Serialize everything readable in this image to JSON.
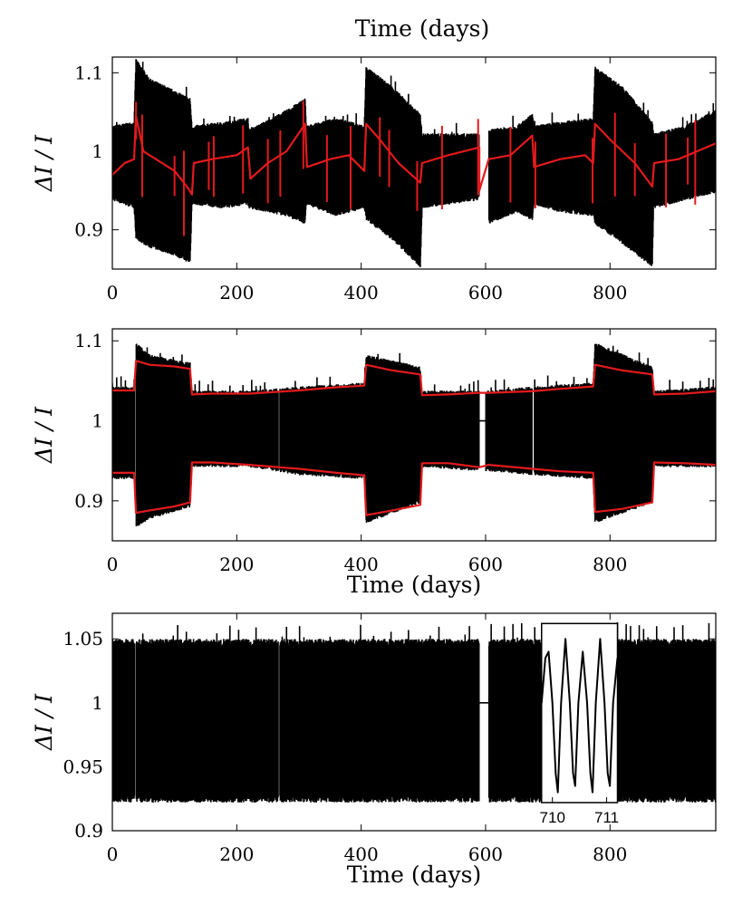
{
  "chart_data": [
    {
      "type": "line",
      "panel": "top",
      "title": "",
      "top_label": "Time (days)",
      "xlabel": "",
      "ylabel": "ΔI / I",
      "xlim": [
        0,
        970
      ],
      "ylim": [
        0.85,
        1.12
      ],
      "xticks": [
        0,
        200,
        400,
        600,
        800
      ],
      "xtick_labels": [
        "0",
        "200",
        "400",
        "600",
        "800"
      ],
      "yticks": [
        0.9,
        1.0,
        1.1
      ],
      "ytick_labels": [
        "0.9",
        "1",
        "1.1"
      ],
      "grid": false,
      "gaps": [
        [
          590,
          605
        ]
      ],
      "series": [
        {
          "color": "#000000",
          "style": "dense-oscillation-band",
          "upper": [
            [
              0,
              1.03
            ],
            [
              35,
              1.035
            ],
            [
              38,
              1.115
            ],
            [
              60,
              1.09
            ],
            [
              100,
              1.075
            ],
            [
              125,
              1.065
            ],
            [
              128,
              1.03
            ],
            [
              180,
              1.035
            ],
            [
              218,
              1.04
            ],
            [
              220,
              1.025
            ],
            [
              280,
              1.05
            ],
            [
              310,
              1.065
            ],
            [
              312,
              1.03
            ],
            [
              360,
              1.04
            ],
            [
              405,
              1.03
            ],
            [
              408,
              1.105
            ],
            [
              450,
              1.08
            ],
            [
              495,
              1.045
            ],
            [
              498,
              1.02
            ],
            [
              540,
              1.02
            ],
            [
              590,
              1.02
            ],
            [
              605,
              1.025
            ],
            [
              650,
              1.03
            ],
            [
              675,
              1.045
            ],
            [
              678,
              1.03
            ],
            [
              720,
              1.035
            ],
            [
              773,
              1.04
            ],
            [
              776,
              1.105
            ],
            [
              820,
              1.08
            ],
            [
              868,
              1.035
            ],
            [
              870,
              1.02
            ],
            [
              920,
              1.03
            ],
            [
              970,
              1.05
            ]
          ],
          "lower": [
            [
              0,
              0.94
            ],
            [
              35,
              0.93
            ],
            [
              38,
              0.89
            ],
            [
              60,
              0.88
            ],
            [
              100,
              0.87
            ],
            [
              125,
              0.86
            ],
            [
              128,
              0.935
            ],
            [
              180,
              0.93
            ],
            [
              218,
              0.935
            ],
            [
              220,
              0.93
            ],
            [
              280,
              0.92
            ],
            [
              310,
              0.91
            ],
            [
              312,
              0.935
            ],
            [
              360,
              0.92
            ],
            [
              405,
              0.93
            ],
            [
              408,
              0.915
            ],
            [
              450,
              0.89
            ],
            [
              495,
              0.855
            ],
            [
              498,
              0.93
            ],
            [
              540,
              0.935
            ],
            [
              590,
              0.94
            ],
            [
              605,
              0.91
            ],
            [
              650,
              0.925
            ],
            [
              675,
              0.915
            ],
            [
              678,
              0.935
            ],
            [
              720,
              0.925
            ],
            [
              773,
              0.92
            ],
            [
              776,
              0.91
            ],
            [
              820,
              0.885
            ],
            [
              868,
              0.855
            ],
            [
              870,
              0.93
            ],
            [
              920,
              0.94
            ],
            [
              970,
              0.95
            ]
          ]
        },
        {
          "color": "#e31a1c",
          "style": "line",
          "points": [
            [
              0,
              0.97
            ],
            [
              20,
              0.985
            ],
            [
              35,
              0.99
            ],
            [
              38,
              1.045
            ],
            [
              50,
              1.0
            ],
            [
              70,
              0.99
            ],
            [
              100,
              0.975
            ],
            [
              120,
              0.955
            ],
            [
              128,
              0.945
            ],
            [
              131,
              0.985
            ],
            [
              160,
              0.99
            ],
            [
              200,
              0.995
            ],
            [
              218,
              1.005
            ],
            [
              222,
              0.965
            ],
            [
              250,
              0.985
            ],
            [
              280,
              1.0
            ],
            [
              310,
              1.035
            ],
            [
              313,
              0.98
            ],
            [
              350,
              0.99
            ],
            [
              380,
              0.995
            ],
            [
              405,
              0.975
            ],
            [
              408,
              1.035
            ],
            [
              430,
              1.015
            ],
            [
              460,
              0.985
            ],
            [
              495,
              0.96
            ],
            [
              498,
              0.985
            ],
            [
              540,
              0.995
            ],
            [
              590,
              1.005
            ],
            [
              590,
              0.95
            ],
            [
              605,
              0.99
            ],
            [
              640,
              0.995
            ],
            [
              675,
              1.02
            ],
            [
              678,
              0.98
            ],
            [
              720,
              0.99
            ],
            [
              760,
              0.995
            ],
            [
              773,
              0.985
            ],
            [
              776,
              1.035
            ],
            [
              800,
              1.015
            ],
            [
              840,
              0.985
            ],
            [
              868,
              0.955
            ],
            [
              871,
              0.985
            ],
            [
              910,
              0.99
            ],
            [
              940,
              1.0
            ],
            [
              970,
              1.01
            ]
          ]
        }
      ]
    },
    {
      "type": "line",
      "panel": "middle",
      "title": "",
      "xlabel": "Time (days)",
      "ylabel": "ΔI / I",
      "xlim": [
        0,
        970
      ],
      "ylim": [
        0.85,
        1.115
      ],
      "xticks": [
        0,
        200,
        400,
        600,
        800
      ],
      "xtick_labels": [
        "0",
        "200",
        "400",
        "600",
        "800"
      ],
      "yticks": [
        0.9,
        1.0,
        1.1
      ],
      "ytick_labels": [
        "0.9",
        "1",
        "1.1"
      ],
      "grid": false,
      "gaps": [
        [
          36,
          38
        ],
        [
          267,
          269
        ],
        [
          590,
          600
        ],
        [
          675,
          678
        ]
      ],
      "series": [
        {
          "color": "#000000",
          "style": "dense-oscillation-band",
          "upper": [
            [
              0,
              1.04
            ],
            [
              35,
              1.04
            ],
            [
              38,
              1.095
            ],
            [
              60,
              1.08
            ],
            [
              125,
              1.07
            ],
            [
              128,
              1.035
            ],
            [
              220,
              1.035
            ],
            [
              300,
              1.04
            ],
            [
              405,
              1.045
            ],
            [
              408,
              1.08
            ],
            [
              495,
              1.065
            ],
            [
              498,
              1.035
            ],
            [
              590,
              1.035
            ],
            [
              605,
              1.035
            ],
            [
              675,
              1.04
            ],
            [
              773,
              1.045
            ],
            [
              776,
              1.095
            ],
            [
              868,
              1.065
            ],
            [
              871,
              1.035
            ],
            [
              970,
              1.04
            ]
          ],
          "lower": [
            [
              0,
              0.93
            ],
            [
              35,
              0.93
            ],
            [
              38,
              0.87
            ],
            [
              60,
              0.88
            ],
            [
              125,
              0.895
            ],
            [
              128,
              0.945
            ],
            [
              220,
              0.945
            ],
            [
              300,
              0.935
            ],
            [
              405,
              0.93
            ],
            [
              408,
              0.875
            ],
            [
              495,
              0.9
            ],
            [
              498,
              0.945
            ],
            [
              590,
              0.94
            ],
            [
              605,
              0.94
            ],
            [
              675,
              0.935
            ],
            [
              773,
              0.93
            ],
            [
              776,
              0.875
            ],
            [
              868,
              0.9
            ],
            [
              871,
              0.945
            ],
            [
              970,
              0.945
            ]
          ]
        },
        {
          "color": "#e31a1c",
          "style": "line",
          "points": [
            [
              0,
              1.038
            ],
            [
              35,
              1.038
            ],
            [
              38,
              1.075
            ],
            [
              60,
              1.07
            ],
            [
              100,
              1.068
            ],
            [
              125,
              1.065
            ],
            [
              128,
              1.033
            ],
            [
              160,
              1.034
            ],
            [
              220,
              1.034
            ],
            [
              300,
              1.038
            ],
            [
              360,
              1.042
            ],
            [
              405,
              1.044
            ],
            [
              408,
              1.07
            ],
            [
              450,
              1.063
            ],
            [
              495,
              1.058
            ],
            [
              498,
              1.032
            ],
            [
              540,
              1.033
            ],
            [
              590,
              1.035
            ],
            [
              605,
              1.035
            ],
            [
              675,
              1.037
            ],
            [
              720,
              1.04
            ],
            [
              773,
              1.043
            ],
            [
              776,
              1.07
            ],
            [
              820,
              1.063
            ],
            [
              868,
              1.058
            ],
            [
              871,
              1.033
            ],
            [
              920,
              1.034
            ],
            [
              970,
              1.037
            ]
          ]
        },
        {
          "color": "#e31a1c",
          "style": "line",
          "points": [
            [
              0,
              0.935
            ],
            [
              35,
              0.935
            ],
            [
              38,
              0.885
            ],
            [
              60,
              0.888
            ],
            [
              100,
              0.893
            ],
            [
              125,
              0.898
            ],
            [
              128,
              0.948
            ],
            [
              160,
              0.948
            ],
            [
              220,
              0.945
            ],
            [
              300,
              0.94
            ],
            [
              360,
              0.935
            ],
            [
              405,
              0.932
            ],
            [
              408,
              0.882
            ],
            [
              450,
              0.888
            ],
            [
              495,
              0.895
            ],
            [
              498,
              0.947
            ],
            [
              540,
              0.947
            ],
            [
              590,
              0.942
            ],
            [
              605,
              0.945
            ],
            [
              675,
              0.94
            ],
            [
              720,
              0.937
            ],
            [
              773,
              0.935
            ],
            [
              776,
              0.886
            ],
            [
              820,
              0.89
            ],
            [
              868,
              0.898
            ],
            [
              871,
              0.948
            ],
            [
              920,
              0.947
            ],
            [
              970,
              0.945
            ]
          ]
        }
      ]
    },
    {
      "type": "line",
      "panel": "bottom",
      "title": "",
      "xlabel": "Time (days)",
      "ylabel": "ΔI / I",
      "xlim": [
        0,
        970
      ],
      "ylim": [
        0.9,
        1.07
      ],
      "xticks": [
        0,
        200,
        400,
        600,
        800
      ],
      "xtick_labels": [
        "0",
        "200",
        "400",
        "600",
        "800"
      ],
      "yticks": [
        0.9,
        0.95,
        1.0,
        1.05
      ],
      "ytick_labels": [
        "0.9",
        "0.95",
        "1",
        "1.05"
      ],
      "grid": false,
      "gaps": [
        [
          36,
          38
        ],
        [
          267,
          269
        ],
        [
          590,
          605
        ]
      ],
      "series": [
        {
          "color": "#000000",
          "style": "dense-oscillation-band",
          "upper": [
            [
              0,
              1.047
            ],
            [
              970,
              1.047
            ]
          ],
          "lower": [
            [
              0,
              0.925
            ],
            [
              970,
              0.925
            ]
          ]
        }
      ],
      "inset": {
        "x_labels": [
          "710",
          "711"
        ],
        "x_range": [
          709.8,
          711.2
        ],
        "y_range": [
          0.922,
          1.062
        ],
        "curve": [
          [
            709.8,
            1.0
          ],
          [
            709.87,
            1.035
          ],
          [
            709.93,
            1.04
          ],
          [
            710.0,
            1.0
          ],
          [
            710.06,
            0.945
          ],
          [
            710.1,
            0.93
          ],
          [
            710.16,
            1.0
          ],
          [
            710.24,
            1.05
          ],
          [
            710.32,
            1.0
          ],
          [
            710.38,
            0.945
          ],
          [
            710.42,
            0.935
          ],
          [
            710.48,
            1.0
          ],
          [
            710.56,
            1.04
          ],
          [
            710.64,
            1.0
          ],
          [
            710.7,
            0.945
          ],
          [
            710.74,
            0.93
          ],
          [
            710.8,
            1.0
          ],
          [
            710.88,
            1.05
          ],
          [
            710.96,
            1.0
          ],
          [
            711.02,
            0.945
          ],
          [
            711.06,
            0.935
          ],
          [
            711.12,
            1.0
          ],
          [
            711.2,
            1.035
          ]
        ]
      }
    }
  ]
}
